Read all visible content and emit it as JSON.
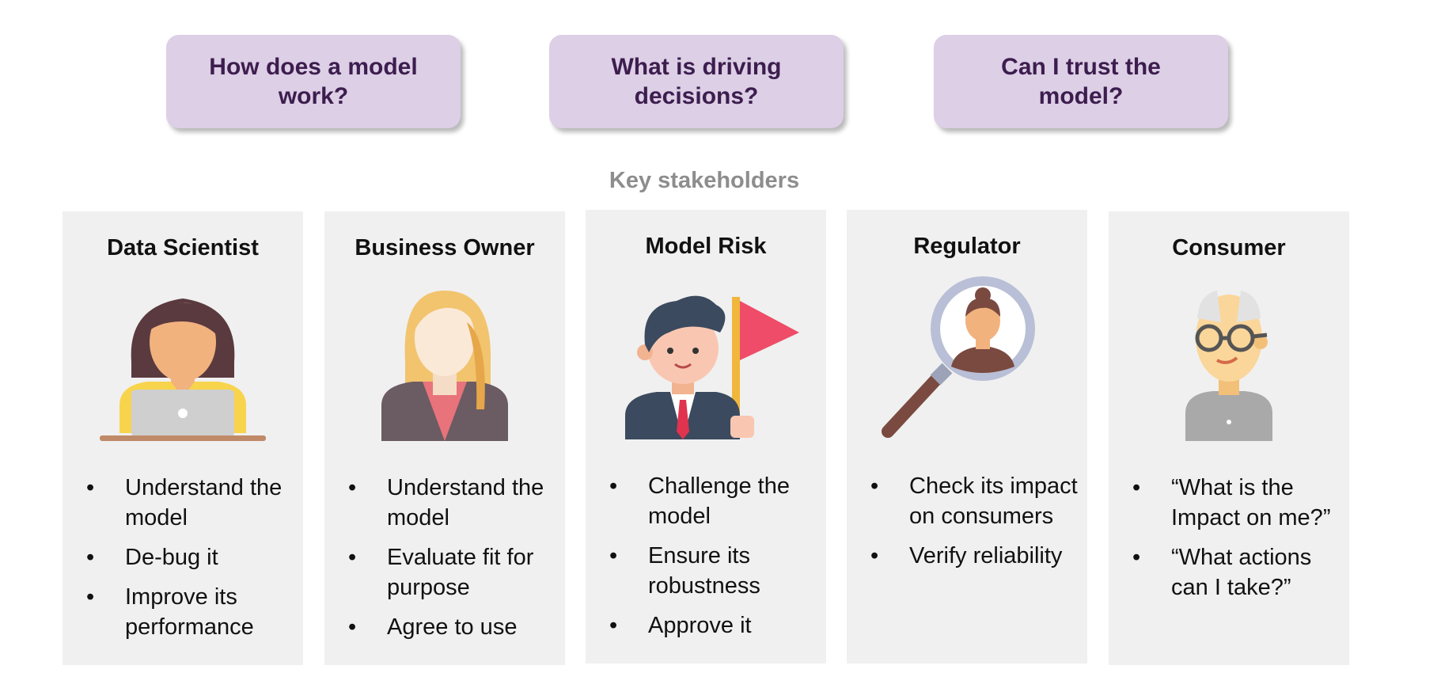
{
  "questions": [
    "How does a model work?",
    "What is driving decisions?",
    "Can I trust the model?"
  ],
  "section_title": "Key stakeholders",
  "stakeholders": [
    {
      "title": "Data Scientist",
      "icon": "data-scientist-icon",
      "bullets": [
        "Understand the model",
        "De-bug it",
        "Improve its performance"
      ]
    },
    {
      "title": "Business Owner",
      "icon": "business-owner-icon",
      "bullets": [
        "Understand the model",
        "Evaluate fit for purpose",
        "Agree to use"
      ]
    },
    {
      "title": "Model Risk",
      "icon": "model-risk-icon",
      "bullets": [
        "Challenge the model",
        "Ensure its robustness",
        "Approve it"
      ]
    },
    {
      "title": "Regulator",
      "icon": "regulator-magnifier-icon",
      "bullets": [
        "Check its impact on consumers",
        "Verify reliability"
      ]
    },
    {
      "title": "Consumer",
      "icon": "consumer-icon",
      "bullets": [
        "“What is the Impact on me?”",
        "“What actions can I take?”"
      ]
    }
  ],
  "colors": {
    "question_bg": "#dccfe6",
    "question_text": "#3d1d4e",
    "card_bg": "#f0f0f0",
    "section_title": "#8d8d8d"
  }
}
